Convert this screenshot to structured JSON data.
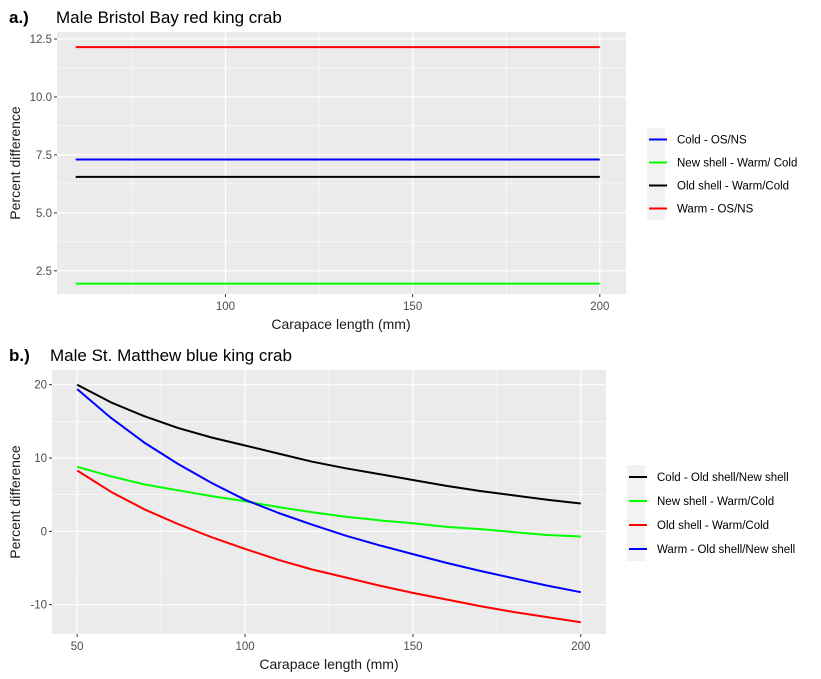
{
  "chart_data": [
    {
      "panel": "a.)",
      "type": "line",
      "title": "Male Bristol Bay red king crab",
      "xlabel": "Carapace length (mm)",
      "ylabel": "Percent difference",
      "xlim": [
        55,
        207
      ],
      "ylim": [
        1.5,
        12.8
      ],
      "xticks": [
        100,
        150,
        200
      ],
      "yticks": [
        2.5,
        5.0,
        7.5,
        10.0,
        12.5
      ],
      "ytick_labels": [
        "2.5",
        "5.0",
        "7.5",
        "10.0",
        "12.5"
      ],
      "grid": true,
      "legend_position": "right",
      "series": [
        {
          "name": "Cold - OS/NS",
          "color": "#0000ff",
          "x": [
            60,
            200
          ],
          "y": [
            7.3,
            7.3
          ]
        },
        {
          "name": "New shell - Warm/ Cold",
          "color": "#00ff00",
          "x": [
            60,
            200
          ],
          "y": [
            1.95,
            1.95
          ]
        },
        {
          "name": "Old shell - Warm/Cold",
          "color": "#000000",
          "x": [
            60,
            200
          ],
          "y": [
            6.55,
            6.55
          ]
        },
        {
          "name": "Warm - OS/NS",
          "color": "#ff0000",
          "x": [
            60,
            200
          ],
          "y": [
            12.15,
            12.15
          ]
        }
      ]
    },
    {
      "panel": "b.)",
      "type": "line",
      "title": "Male St. Matthew blue king crab",
      "xlabel": "Carapace length (mm)",
      "ylabel": "Percent difference",
      "xlim": [
        42.5,
        207.5
      ],
      "ylim": [
        -14,
        22
      ],
      "xticks": [
        50,
        100,
        150,
        200
      ],
      "yticks": [
        -10,
        0,
        10,
        20
      ],
      "ytick_labels": [
        "-10",
        "0",
        "10",
        "20"
      ],
      "grid": true,
      "legend_position": "right",
      "series": [
        {
          "name": "Cold - Old shell/New shell",
          "color": "#000000",
          "x": [
            50,
            60,
            70,
            80,
            90,
            100,
            110,
            120,
            130,
            140,
            150,
            160,
            170,
            180,
            190,
            200
          ],
          "y": [
            20.0,
            17.6,
            15.7,
            14.1,
            12.8,
            11.7,
            10.6,
            9.5,
            8.6,
            7.8,
            7.0,
            6.2,
            5.5,
            4.9,
            4.3,
            3.8
          ]
        },
        {
          "name": "New shell - Warm/Cold",
          "color": "#00ff00",
          "x": [
            50,
            60,
            70,
            80,
            90,
            100,
            110,
            120,
            130,
            140,
            150,
            160,
            170,
            180,
            190,
            200
          ],
          "y": [
            8.8,
            7.5,
            6.4,
            5.6,
            4.8,
            4.1,
            3.3,
            2.6,
            2.0,
            1.5,
            1.1,
            0.6,
            0.3,
            -0.1,
            -0.5,
            -0.7
          ]
        },
        {
          "name": "Old shell - Warm/Cold",
          "color": "#ff0000",
          "x": [
            50,
            60,
            70,
            80,
            90,
            100,
            110,
            120,
            130,
            140,
            150,
            160,
            170,
            180,
            190,
            200
          ],
          "y": [
            8.3,
            5.4,
            3.0,
            1.0,
            -0.8,
            -2.4,
            -3.9,
            -5.2,
            -6.3,
            -7.4,
            -8.4,
            -9.3,
            -10.2,
            -11.0,
            -11.7,
            -12.4
          ]
        },
        {
          "name": "Warm - Old shell/New shell",
          "color": "#0000ff",
          "x": [
            50,
            60,
            70,
            80,
            90,
            100,
            110,
            120,
            130,
            140,
            150,
            160,
            170,
            180,
            190,
            200
          ],
          "y": [
            19.4,
            15.5,
            12.1,
            9.2,
            6.6,
            4.3,
            2.5,
            0.9,
            -0.6,
            -1.9,
            -3.1,
            -4.3,
            -5.4,
            -6.4,
            -7.4,
            -8.3
          ]
        }
      ]
    }
  ]
}
